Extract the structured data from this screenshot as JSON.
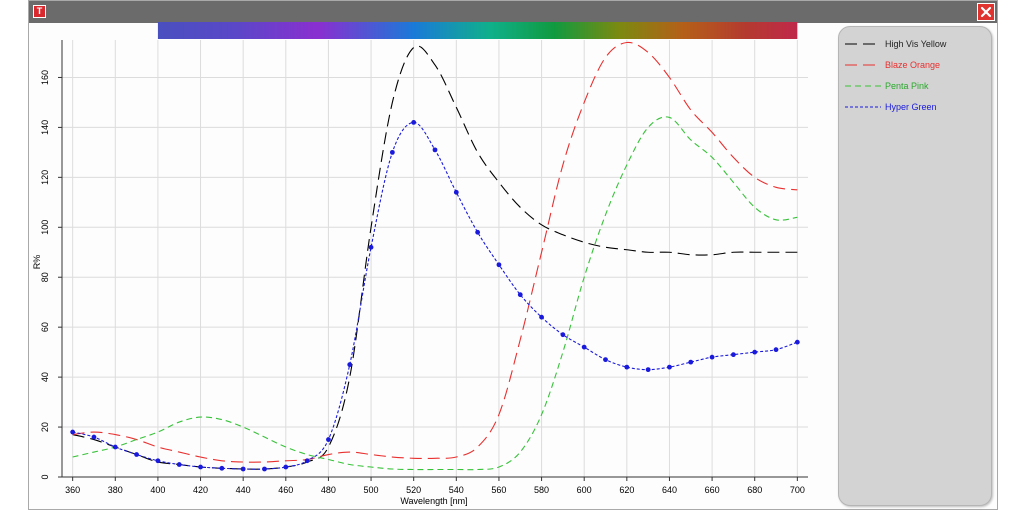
{
  "window": {
    "app_icon_glyph": "T",
    "close_icon": "close-icon"
  },
  "chart_data": {
    "type": "line",
    "xlabel": "Wavelength [nm]",
    "ylabel": "R%",
    "xlim": [
      355,
      705
    ],
    "ylim": [
      0,
      175
    ],
    "xticks": [
      360,
      380,
      400,
      420,
      440,
      460,
      480,
      500,
      520,
      540,
      560,
      580,
      600,
      620,
      640,
      660,
      680,
      700
    ],
    "yticks": [
      0,
      20,
      40,
      60,
      80,
      100,
      120,
      140,
      160
    ],
    "grid": true,
    "legend_placement": "right",
    "spectrum_bar": {
      "x_start": 400,
      "x_end": 700
    },
    "x": [
      360,
      370,
      380,
      390,
      400,
      410,
      420,
      430,
      440,
      450,
      460,
      470,
      480,
      490,
      500,
      510,
      520,
      530,
      540,
      550,
      560,
      570,
      580,
      590,
      600,
      610,
      620,
      630,
      640,
      650,
      660,
      670,
      680,
      690,
      700
    ],
    "series": [
      {
        "name": "High Vis Yellow",
        "color": "#000000",
        "dash": "long",
        "markers": false,
        "values": [
          17,
          15,
          12,
          9,
          6,
          5,
          4,
          3.5,
          3.2,
          3.2,
          4,
          6,
          12,
          40,
          100,
          150,
          172,
          165,
          148,
          130,
          118,
          108,
          101,
          97,
          94,
          92,
          91,
          90,
          90,
          89,
          89,
          90,
          90,
          90,
          90
        ]
      },
      {
        "name": "Blaze Orange",
        "color": "#e8302f",
        "dash": "long",
        "markers": false,
        "values": [
          17,
          18,
          17,
          15,
          12,
          10,
          8,
          6.5,
          6,
          6,
          6.5,
          7,
          9,
          10,
          9,
          8,
          7.5,
          7.5,
          8,
          12,
          25,
          55,
          90,
          125,
          150,
          168,
          174,
          170,
          160,
          147,
          138,
          128,
          120,
          116,
          115
        ]
      },
      {
        "name": "Penta Pink",
        "color": "#38c23a",
        "dash": "medium",
        "markers": false,
        "values": [
          8,
          10,
          12,
          15,
          18,
          22,
          24,
          23,
          20,
          16,
          12,
          9,
          7,
          5,
          4,
          3.2,
          3,
          3,
          3,
          3,
          4,
          10,
          25,
          50,
          80,
          105,
          125,
          140,
          144,
          135,
          128,
          118,
          108,
          103,
          104
        ]
      },
      {
        "name": "Hyper Green",
        "color": "#1a1adc",
        "dash": "short",
        "markers": true,
        "values": [
          18,
          16,
          12,
          9,
          6.5,
          5,
          4,
          3.5,
          3.2,
          3.2,
          4,
          6.5,
          15,
          45,
          92,
          130,
          142,
          131,
          114,
          98,
          85,
          73,
          64,
          57,
          52,
          47,
          44,
          43,
          44,
          46,
          48,
          49,
          50,
          51,
          54
        ]
      }
    ]
  }
}
